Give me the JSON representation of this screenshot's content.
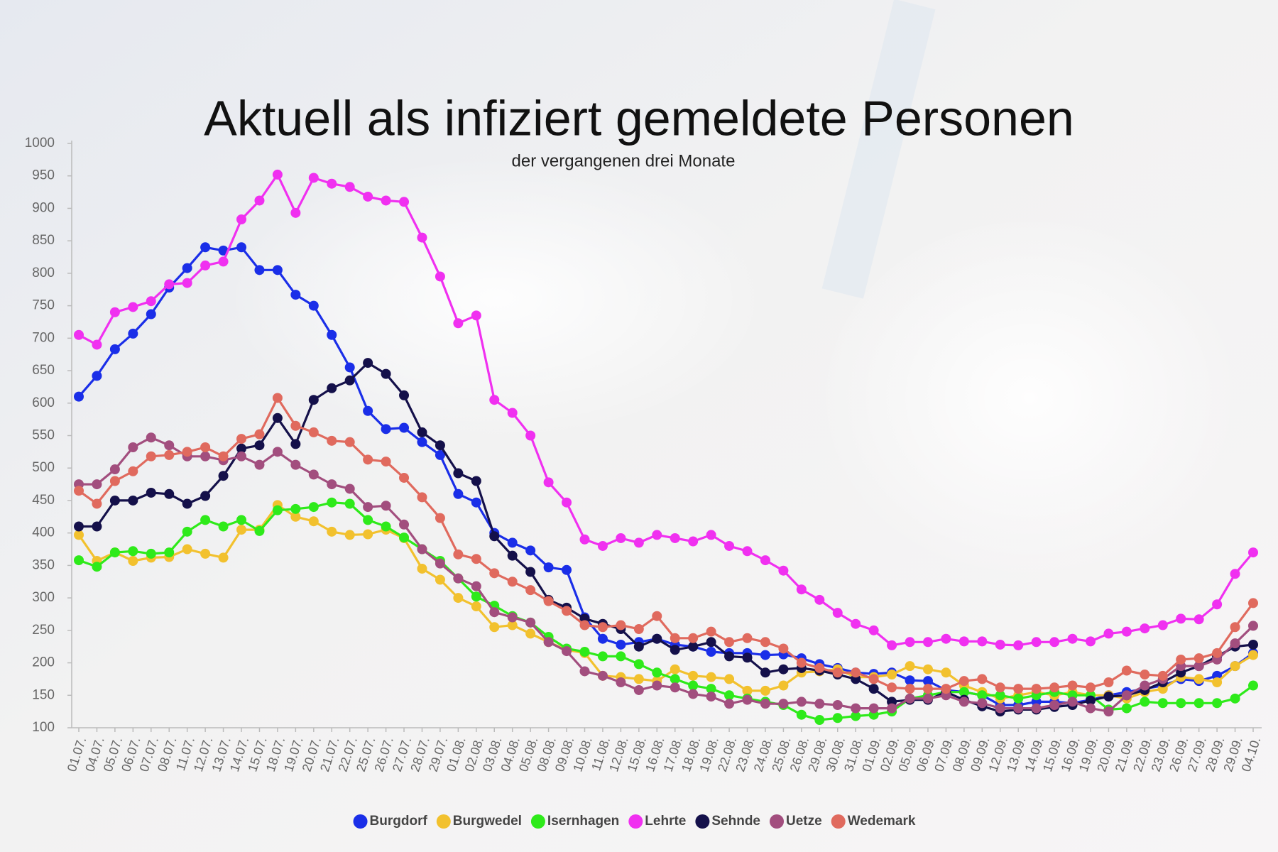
{
  "chart_data": {
    "type": "line",
    "title": "Aktuell als infiziert gemeldete Personen",
    "subtitle": "der vergangenen drei Monate",
    "categories": [
      "01.07.",
      "04.07.",
      "05.07.",
      "06.07.",
      "07.07.",
      "08.07.",
      "11.07.",
      "12.07.",
      "13.07.",
      "14.07.",
      "15.07.",
      "18.07.",
      "19.07.",
      "20.07.",
      "21.07.",
      "22.07.",
      "25.07.",
      "26.07.",
      "27.07.",
      "28.07.",
      "29.07.",
      "01.08.",
      "02.08.",
      "03.08.",
      "04.08.",
      "05.08.",
      "08.08.",
      "09.08.",
      "10.08.",
      "11.08.",
      "12.08.",
      "15.08.",
      "16.08.",
      "17.08.",
      "18.08.",
      "19.08.",
      "22.08.",
      "23.08.",
      "24.08.",
      "25.08.",
      "26.08.",
      "29.08.",
      "30.08.",
      "31.08.",
      "01.09.",
      "02.09.",
      "05.09.",
      "06.09.",
      "07.09.",
      "08.09.",
      "09.09.",
      "12.09.",
      "13.09.",
      "14.09.",
      "15.09.",
      "16.09.",
      "19.09.",
      "20.09.",
      "21.09.",
      "22.09.",
      "23.09.",
      "26.09.",
      "27.09.",
      "28.09.",
      "29.09.",
      "04.10."
    ],
    "series": [
      {
        "name": "Burgdorf",
        "color": "#1a2ee8",
        "values": [
          610,
          642,
          683,
          707,
          737,
          778,
          808,
          840,
          835,
          840,
          805,
          805,
          767,
          750,
          705,
          655,
          588,
          560,
          562,
          540,
          520,
          460,
          447,
          400,
          385,
          373,
          347,
          343,
          270,
          237,
          228,
          232,
          237,
          228,
          225,
          217,
          215,
          215,
          212,
          213,
          207,
          198,
          192,
          185,
          183,
          185,
          173,
          172,
          158,
          155,
          150,
          135,
          135,
          140,
          140,
          138,
          143,
          150,
          155,
          160,
          165,
          175,
          172,
          180,
          195,
          215
        ]
      },
      {
        "name": "Burgwedel",
        "color": "#f2c12e",
        "values": [
          397,
          357,
          370,
          357,
          362,
          363,
          375,
          368,
          362,
          405,
          405,
          443,
          425,
          418,
          402,
          397,
          398,
          405,
          392,
          345,
          328,
          300,
          287,
          255,
          258,
          245,
          232,
          220,
          215,
          180,
          178,
          175,
          172,
          190,
          180,
          178,
          175,
          157,
          157,
          165,
          185,
          187,
          190,
          178,
          178,
          182,
          195,
          190,
          185,
          165,
          155,
          145,
          150,
          155,
          150,
          155,
          150,
          150,
          145,
          155,
          160,
          178,
          175,
          170,
          195,
          212
        ]
      },
      {
        "name": "Isernhagen",
        "color": "#2eea1a",
        "values": [
          358,
          348,
          370,
          372,
          368,
          370,
          402,
          420,
          410,
          420,
          403,
          435,
          437,
          440,
          447,
          445,
          420,
          410,
          393,
          375,
          357,
          330,
          302,
          288,
          272,
          262,
          240,
          222,
          217,
          210,
          210,
          198,
          185,
          175,
          165,
          160,
          150,
          145,
          140,
          135,
          120,
          112,
          115,
          118,
          120,
          125,
          145,
          150,
          155,
          155,
          150,
          150,
          145,
          150,
          155,
          150,
          150,
          128,
          130,
          140,
          138,
          138,
          138,
          138,
          145,
          165
        ]
      },
      {
        "name": "Lehrte",
        "color": "#f030f0",
        "values": [
          705,
          690,
          740,
          748,
          757,
          783,
          785,
          812,
          818,
          883,
          912,
          952,
          893,
          947,
          938,
          933,
          918,
          912,
          910,
          855,
          795,
          723,
          735,
          605,
          585,
          550,
          478,
          447,
          390,
          380,
          392,
          385,
          397,
          392,
          387,
          397,
          380,
          372,
          358,
          342,
          313,
          297,
          277,
          260,
          250,
          227,
          232,
          232,
          237,
          233,
          233,
          228,
          227,
          232,
          232,
          237,
          233,
          245,
          248,
          253,
          258,
          268,
          267,
          290,
          337,
          370
        ]
      },
      {
        "name": "Sehnde",
        "color": "#14104a",
        "values": [
          410,
          410,
          450,
          450,
          462,
          460,
          445,
          457,
          488,
          530,
          535,
          577,
          537,
          605,
          623,
          635,
          662,
          645,
          612,
          555,
          535,
          492,
          480,
          395,
          365,
          340,
          297,
          285,
          268,
          260,
          252,
          225,
          237,
          220,
          225,
          232,
          210,
          208,
          185,
          190,
          192,
          188,
          182,
          175,
          160,
          140,
          143,
          143,
          155,
          143,
          133,
          125,
          128,
          128,
          132,
          135,
          142,
          148,
          150,
          158,
          170,
          185,
          195,
          210,
          225,
          228
        ]
      },
      {
        "name": "Uetze",
        "color": "#a24e7e",
        "values": [
          475,
          475,
          498,
          532,
          547,
          535,
          518,
          518,
          512,
          518,
          505,
          525,
          505,
          490,
          475,
          468,
          440,
          442,
          413,
          375,
          353,
          330,
          318,
          278,
          270,
          262,
          232,
          218,
          187,
          180,
          170,
          158,
          165,
          162,
          152,
          148,
          137,
          143,
          137,
          137,
          140,
          137,
          135,
          130,
          130,
          130,
          145,
          145,
          150,
          140,
          138,
          130,
          130,
          130,
          135,
          140,
          130,
          125,
          150,
          165,
          175,
          195,
          195,
          205,
          230,
          257
        ]
      },
      {
        "name": "Wedemark",
        "color": "#e06a5e",
        "values": [
          465,
          445,
          480,
          495,
          518,
          520,
          525,
          532,
          518,
          545,
          552,
          608,
          565,
          555,
          542,
          540,
          513,
          510,
          485,
          455,
          423,
          367,
          360,
          338,
          325,
          312,
          295,
          280,
          258,
          255,
          258,
          252,
          272,
          238,
          238,
          248,
          232,
          238,
          232,
          222,
          200,
          192,
          185,
          185,
          175,
          162,
          160,
          160,
          160,
          172,
          175,
          162,
          160,
          160,
          162,
          165,
          162,
          170,
          188,
          182,
          180,
          205,
          207,
          215,
          255,
          292
        ]
      }
    ],
    "ylim": [
      100,
      1000
    ],
    "yticks": [
      100,
      150,
      200,
      250,
      300,
      350,
      400,
      450,
      500,
      550,
      600,
      650,
      700,
      750,
      800,
      850,
      900,
      950,
      1000
    ],
    "grid": false,
    "legend": "bottom"
  }
}
